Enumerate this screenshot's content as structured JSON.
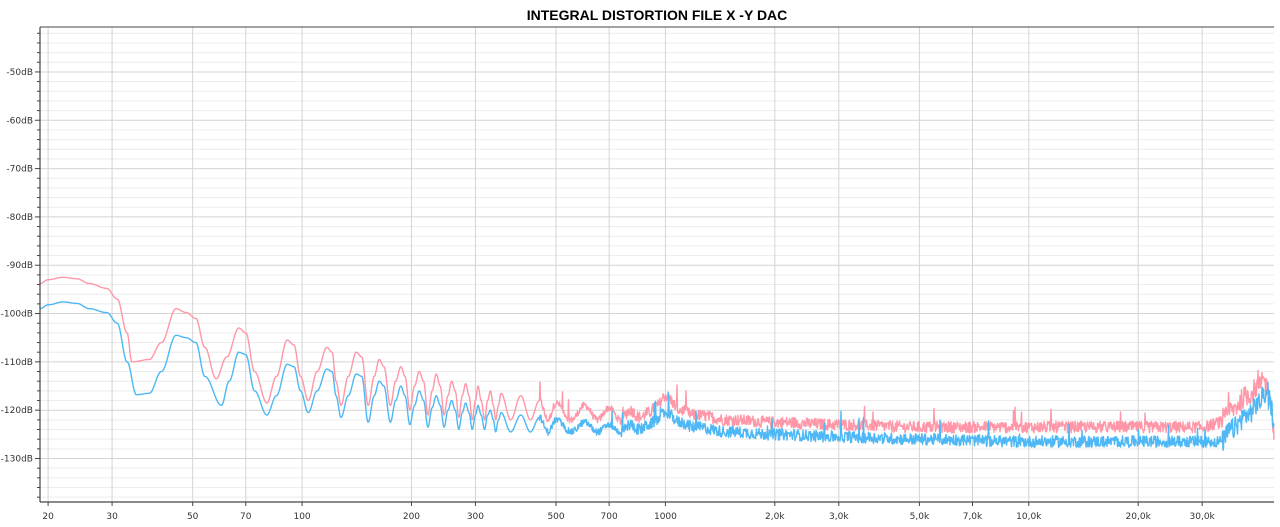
{
  "chart_data": {
    "type": "line",
    "title": "INTEGRAL DISTORTION FILE X -Y DAC",
    "xlabel": "",
    "ylabel": "",
    "xscale": "log",
    "xlim": [
      19,
      47300
    ],
    "ylim": [
      -139,
      -40.7
    ],
    "grid": true,
    "x_ticks": [
      20,
      30,
      50,
      70,
      100,
      200,
      300,
      500,
      700,
      1000,
      2000,
      3000,
      5000,
      7000,
      10000,
      20000,
      30000
    ],
    "x_tick_labels": [
      "20",
      "30",
      "50",
      "70",
      "100",
      "200",
      "300",
      "500",
      "700",
      "1000",
      "2,0k",
      "3,0k",
      "5,0k",
      "7,0k",
      "10,0k",
      "20,0k",
      "30,0k"
    ],
    "y_ticks": [
      -50,
      -60,
      -70,
      -80,
      -90,
      -100,
      -110,
      -120,
      -130
    ],
    "y_tick_labels": [
      "-50dB",
      "-60dB",
      "-70dB",
      "-80dB",
      "-90dB",
      "-100dB",
      "-110dB",
      "-120dB",
      "-130dB"
    ],
    "series": [
      {
        "color": "#ff97a8",
        "points": [
          [
            19,
            -93.8
          ],
          [
            20,
            -93
          ],
          [
            22,
            -92.5
          ],
          [
            24,
            -92.8
          ],
          [
            26,
            -93.8
          ],
          [
            29,
            -94.8
          ],
          [
            31,
            -97
          ],
          [
            33,
            -104
          ],
          [
            34,
            -110
          ],
          [
            38,
            -109.5
          ],
          [
            41,
            -106
          ],
          [
            45,
            -99
          ],
          [
            48,
            -99.8
          ],
          [
            51,
            -101
          ],
          [
            54,
            -107
          ],
          [
            58,
            -113.5
          ],
          [
            62,
            -109
          ],
          [
            67,
            -103
          ],
          [
            70,
            -104
          ],
          [
            74,
            -112
          ],
          [
            80,
            -118.5
          ],
          [
            85,
            -113
          ],
          [
            91,
            -105.5
          ],
          [
            95,
            -106.5
          ],
          [
            99,
            -113
          ],
          [
            104,
            -118
          ],
          [
            110,
            -112
          ],
          [
            117,
            -107
          ],
          [
            121,
            -108
          ],
          [
            124,
            -114
          ],
          [
            128,
            -119
          ],
          [
            134,
            -113
          ],
          [
            141,
            -108
          ],
          [
            146,
            -109
          ],
          [
            152,
            -119
          ],
          [
            158,
            -113
          ],
          [
            163,
            -109.5
          ],
          [
            168,
            -111
          ],
          [
            175,
            -119
          ],
          [
            181,
            -114
          ],
          [
            187,
            -111
          ],
          [
            192,
            -113
          ],
          [
            198,
            -120
          ],
          [
            204,
            -115
          ],
          [
            210,
            -112
          ],
          [
            216,
            -114
          ],
          [
            222,
            -121
          ],
          [
            228,
            -116
          ],
          [
            234,
            -112.5
          ],
          [
            240,
            -115
          ],
          [
            246,
            -121
          ],
          [
            252,
            -117
          ],
          [
            258,
            -114
          ],
          [
            264,
            -116
          ],
          [
            270,
            -121.5
          ],
          [
            276,
            -117
          ],
          [
            282,
            -114.5
          ],
          [
            288,
            -117
          ],
          [
            294,
            -122
          ],
          [
            300,
            -118
          ],
          [
            305,
            -115
          ],
          [
            311,
            -118
          ],
          [
            318,
            -122
          ],
          [
            324,
            -118
          ],
          [
            330,
            -116
          ],
          [
            336,
            -119
          ],
          [
            341,
            -122
          ],
          [
            347,
            -119
          ],
          [
            353,
            -116.5
          ],
          [
            375,
            -122
          ],
          [
            400,
            -117
          ],
          [
            425,
            -122
          ],
          [
            450,
            -118
          ],
          [
            475,
            -122
          ],
          [
            500,
            -118.5
          ],
          [
            550,
            -122
          ],
          [
            600,
            -119
          ],
          [
            650,
            -122
          ],
          [
            700,
            -119.5
          ],
          [
            750,
            -122
          ],
          [
            800,
            -120
          ],
          [
            850,
            -121.5
          ],
          [
            900,
            -120.5
          ],
          [
            950,
            -119
          ],
          [
            1000,
            -117
          ],
          [
            1100,
            -120
          ],
          [
            1200,
            -121
          ],
          [
            1500,
            -122
          ],
          [
            2000,
            -122.5
          ],
          [
            3000,
            -123
          ],
          [
            5000,
            -123.5
          ],
          [
            10000,
            -123.5
          ],
          [
            20000,
            -123.5
          ],
          [
            30000,
            -123.5
          ],
          [
            34000,
            -122.5
          ],
          [
            36000,
            -120
          ],
          [
            40000,
            -117
          ],
          [
            43000,
            -115
          ],
          [
            44500,
            -114
          ],
          [
            46000,
            -117
          ],
          [
            47300,
            -124
          ]
        ]
      },
      {
        "color": "#4db8f5",
        "points": [
          [
            19,
            -99
          ],
          [
            20,
            -98.2
          ],
          [
            22,
            -97.6
          ],
          [
            24,
            -97.9
          ],
          [
            26,
            -99
          ],
          [
            29,
            -99.8
          ],
          [
            31,
            -102
          ],
          [
            33,
            -110
          ],
          [
            35,
            -116.8
          ],
          [
            38,
            -116.5
          ],
          [
            41,
            -112
          ],
          [
            45,
            -104.5
          ],
          [
            48,
            -105
          ],
          [
            51,
            -106
          ],
          [
            54,
            -113
          ],
          [
            60,
            -119
          ],
          [
            63,
            -114
          ],
          [
            67,
            -108
          ],
          [
            70,
            -108.5
          ],
          [
            74,
            -116
          ],
          [
            80,
            -121
          ],
          [
            85,
            -117
          ],
          [
            91,
            -110.5
          ],
          [
            95,
            -111
          ],
          [
            99,
            -116
          ],
          [
            104,
            -120.5
          ],
          [
            110,
            -116
          ],
          [
            117,
            -111.5
          ],
          [
            121,
            -112
          ],
          [
            124,
            -117
          ],
          [
            128,
            -121.5
          ],
          [
            134,
            -117
          ],
          [
            141,
            -112.5
          ],
          [
            146,
            -113
          ],
          [
            152,
            -122.5
          ],
          [
            158,
            -117
          ],
          [
            163,
            -114
          ],
          [
            168,
            -115
          ],
          [
            175,
            -122.5
          ],
          [
            181,
            -118
          ],
          [
            187,
            -115
          ],
          [
            192,
            -117
          ],
          [
            198,
            -123
          ],
          [
            204,
            -119
          ],
          [
            210,
            -116
          ],
          [
            216,
            -118
          ],
          [
            222,
            -123.5
          ],
          [
            228,
            -119.5
          ],
          [
            234,
            -117
          ],
          [
            240,
            -119
          ],
          [
            246,
            -123.5
          ],
          [
            252,
            -120
          ],
          [
            258,
            -118
          ],
          [
            264,
            -120
          ],
          [
            270,
            -124
          ],
          [
            276,
            -120.5
          ],
          [
            282,
            -118.5
          ],
          [
            288,
            -120.5
          ],
          [
            294,
            -124
          ],
          [
            300,
            -121
          ],
          [
            305,
            -119
          ],
          [
            311,
            -121
          ],
          [
            318,
            -124
          ],
          [
            324,
            -121
          ],
          [
            330,
            -120
          ],
          [
            336,
            -122
          ],
          [
            341,
            -124.5
          ],
          [
            347,
            -122
          ],
          [
            353,
            -120.5
          ],
          [
            375,
            -124.5
          ],
          [
            400,
            -121
          ],
          [
            425,
            -124.5
          ],
          [
            450,
            -121.5
          ],
          [
            475,
            -124.5
          ],
          [
            500,
            -122
          ],
          [
            550,
            -124.5
          ],
          [
            600,
            -122.5
          ],
          [
            650,
            -124.5
          ],
          [
            700,
            -123
          ],
          [
            750,
            -124.5
          ],
          [
            800,
            -123
          ],
          [
            850,
            -124
          ],
          [
            900,
            -123
          ],
          [
            950,
            -122
          ],
          [
            1000,
            -120.5
          ],
          [
            1100,
            -122.5
          ],
          [
            1200,
            -123.5
          ],
          [
            1500,
            -124.5
          ],
          [
            2000,
            -125
          ],
          [
            3000,
            -125.5
          ],
          [
            5000,
            -126
          ],
          [
            10000,
            -126.5
          ],
          [
            20000,
            -126.5
          ],
          [
            30000,
            -126.5
          ],
          [
            34000,
            -126.5
          ],
          [
            36000,
            -124
          ],
          [
            40000,
            -121
          ],
          [
            43000,
            -118.5
          ],
          [
            44500,
            -116.5
          ],
          [
            46000,
            -118
          ],
          [
            47300,
            -122
          ]
        ]
      }
    ]
  }
}
